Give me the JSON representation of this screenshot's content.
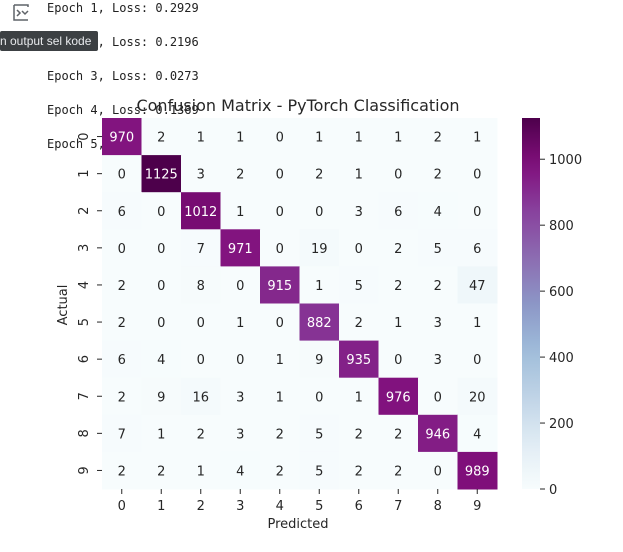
{
  "tooltip": {
    "text": "n output sel kode"
  },
  "log_lines": [
    "Epoch 1, Loss: 0.2929",
    "Epoch 2, Loss: 0.2196",
    "Epoch 3, Loss: 0.0273",
    "Epoch 4, Loss: 0.1369",
    "Epoch 5, Loss: 0.0467"
  ],
  "icons": {
    "output_toggle": "output-collapse-icon"
  },
  "chart_data": {
    "type": "heatmap",
    "title": "Confusion Matrix - PyTorch Classification",
    "xlabel": "Predicted",
    "ylabel": "Actual",
    "x_labels": [
      "0",
      "1",
      "2",
      "3",
      "4",
      "5",
      "6",
      "7",
      "8",
      "9"
    ],
    "y_labels": [
      "0",
      "1",
      "2",
      "3",
      "4",
      "5",
      "6",
      "7",
      "8",
      "9"
    ],
    "matrix": [
      [
        970,
        2,
        1,
        1,
        0,
        1,
        1,
        1,
        2,
        1
      ],
      [
        0,
        1125,
        3,
        2,
        0,
        2,
        1,
        0,
        2,
        0
      ],
      [
        6,
        0,
        1012,
        1,
        0,
        0,
        3,
        6,
        4,
        0
      ],
      [
        0,
        0,
        7,
        971,
        0,
        19,
        0,
        2,
        5,
        6
      ],
      [
        2,
        0,
        8,
        0,
        915,
        1,
        5,
        2,
        2,
        47
      ],
      [
        2,
        0,
        0,
        1,
        0,
        882,
        2,
        1,
        3,
        1
      ],
      [
        6,
        4,
        0,
        0,
        1,
        9,
        935,
        0,
        3,
        0
      ],
      [
        2,
        9,
        16,
        3,
        1,
        0,
        1,
        976,
        0,
        20
      ],
      [
        7,
        1,
        2,
        3,
        2,
        5,
        2,
        2,
        946,
        4
      ],
      [
        2,
        2,
        1,
        4,
        2,
        5,
        2,
        2,
        0,
        989
      ]
    ],
    "colormap": "BuPu",
    "vmin": 0,
    "vmax": 1125,
    "colorbar_ticks": [
      0,
      200,
      400,
      600,
      800,
      1000
    ]
  }
}
